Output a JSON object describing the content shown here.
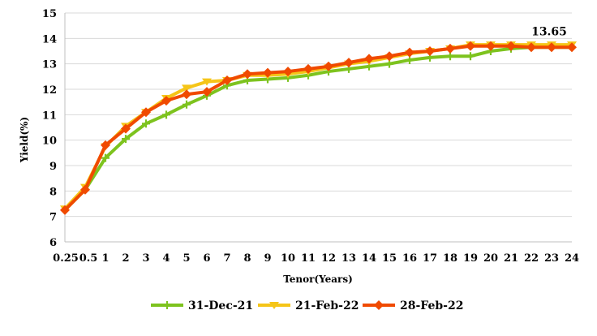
{
  "chart_data": {
    "type": "line",
    "xlabel": "Tenor(Years)",
    "ylabel": "Yield(%)",
    "ylim": [
      6,
      15
    ],
    "yticks": [
      6,
      7,
      8,
      9,
      10,
      11,
      12,
      13,
      14,
      15
    ],
    "categories": [
      "0.25",
      "0.5",
      "1",
      "2",
      "3",
      "4",
      "5",
      "6",
      "7",
      "8",
      "9",
      "10",
      "11",
      "12",
      "13",
      "14",
      "15",
      "16",
      "17",
      "18",
      "19",
      "20",
      "21",
      "22",
      "23",
      "24"
    ],
    "grid": "horizontal",
    "legend_position": "bottom",
    "annotation": "13.65",
    "series": [
      {
        "name": "31-Dec-21",
        "color": "#7DC31E",
        "marker": "plus",
        "values": [
          7.25,
          8.05,
          9.3,
          10.05,
          10.65,
          11.0,
          11.4,
          11.75,
          12.15,
          12.35,
          12.4,
          12.45,
          12.55,
          12.7,
          12.8,
          12.9,
          13.0,
          13.15,
          13.25,
          13.3,
          13.3,
          13.5,
          13.6,
          13.65,
          13.65,
          13.65
        ]
      },
      {
        "name": "21-Feb-22",
        "color": "#F5C518",
        "marker": "triangle-down",
        "values": [
          7.3,
          8.15,
          9.75,
          10.55,
          11.1,
          11.65,
          12.05,
          12.3,
          12.35,
          12.55,
          12.55,
          12.6,
          12.7,
          12.85,
          13.0,
          13.1,
          13.25,
          13.4,
          13.5,
          13.6,
          13.75,
          13.75,
          13.75,
          13.75,
          13.75,
          13.75
        ]
      },
      {
        "name": "28-Feb-22",
        "color": "#F04A00",
        "marker": "diamond",
        "values": [
          7.25,
          8.05,
          9.8,
          10.45,
          11.1,
          11.55,
          11.8,
          11.9,
          12.35,
          12.6,
          12.65,
          12.7,
          12.8,
          12.9,
          13.05,
          13.2,
          13.3,
          13.45,
          13.5,
          13.6,
          13.7,
          13.7,
          13.7,
          13.65,
          13.65,
          13.65
        ]
      }
    ]
  }
}
